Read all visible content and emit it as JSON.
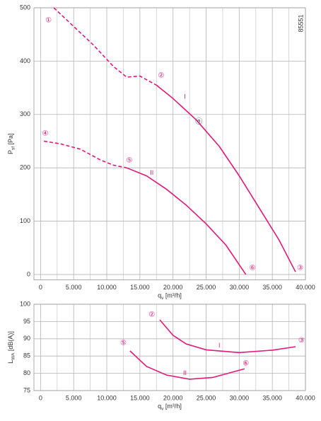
{
  "chart_data": [
    {
      "type": "line",
      "ylabel": {
        "main": "P",
        "sub": "sf",
        "unit": "[Pa]"
      },
      "xlabel": {
        "main": "q",
        "sub": "v",
        "unit": "[m³/h]"
      },
      "code": "85551",
      "xlim": [
        -1000,
        40000
      ],
      "xticks": [
        0,
        {
          "value": 5000,
          "label": "5.000"
        },
        {
          "value": 10000,
          "label": "10.000"
        },
        {
          "value": 15000,
          "label": "15.000"
        },
        {
          "value": 20000,
          "label": "20.000"
        },
        {
          "value": 25000,
          "label": "25.000"
        },
        {
          "value": 30000,
          "label": "30.000"
        },
        {
          "value": 35000,
          "label": "35.000"
        },
        {
          "value": 40000,
          "label": "40.000"
        }
      ],
      "xminorticks": [
        2500,
        7500,
        12500,
        17500,
        22500,
        27500,
        32500,
        37500
      ],
      "ylim": [
        -10,
        500
      ],
      "yticks": [
        0,
        100,
        200,
        300,
        400,
        500
      ],
      "grid": true,
      "series": [
        {
          "color": "#e0197a",
          "style": "dashed",
          "x": [
            2000,
            5000,
            8000,
            11000,
            13000,
            15000,
            17500
          ],
          "values": [
            500,
            465,
            430,
            390,
            370,
            372,
            355
          ]
        },
        {
          "color": "#e0197a",
          "style": "solid",
          "x": [
            17500,
            20000,
            23500,
            27000,
            30000,
            33000,
            36000,
            38500
          ],
          "values": [
            355,
            330,
            290,
            240,
            185,
            125,
            65,
            5
          ]
        },
        {
          "color": "#e0197a",
          "style": "dashed",
          "x": [
            500,
            3000,
            6000,
            9000,
            11000,
            13000
          ],
          "values": [
            250,
            245,
            235,
            215,
            205,
            200
          ]
        },
        {
          "color": "#e0197a",
          "style": "solid",
          "x": [
            13000,
            16000,
            19000,
            22000,
            25000,
            28000,
            31000
          ],
          "values": [
            200,
            185,
            160,
            130,
            95,
            55,
            0
          ]
        }
      ],
      "annotations": [
        {
          "text": "①",
          "x": 1200,
          "y": 476,
          "color": "#e0197a"
        },
        {
          "text": "②",
          "x": 18200,
          "y": 373,
          "color": "#e0197a"
        },
        {
          "text": "③",
          "x": 39200,
          "y": 12,
          "color": "#e0197a"
        },
        {
          "text": "④",
          "x": 700,
          "y": 264,
          "color": "#e0197a"
        },
        {
          "text": "⑤",
          "x": 13400,
          "y": 214,
          "color": "#e0197a"
        },
        {
          "text": "⑥",
          "x": 32000,
          "y": 12,
          "color": "#e0197a"
        },
        {
          "text": "ⓝ",
          "x": 23900,
          "y": 286,
          "color": "#222222"
        },
        {
          "text": "I",
          "x": 21800,
          "y": 333,
          "color": "#e0197a"
        },
        {
          "text": "II",
          "x": 16800,
          "y": 190,
          "color": "#e0197a"
        }
      ]
    },
    {
      "type": "line",
      "ylabel": {
        "main": "L",
        "sub": "WA",
        "unit": "[dB(A)]"
      },
      "xlabel": {
        "main": "q",
        "sub": "v",
        "unit": "[m³/h]"
      },
      "xlim": [
        -1000,
        40000
      ],
      "xticks": [
        0,
        {
          "value": 5000,
          "label": "5.000"
        },
        {
          "value": 10000,
          "label": "10.000"
        },
        {
          "value": 15000,
          "label": "15.000"
        },
        {
          "value": 20000,
          "label": "20.000"
        },
        {
          "value": 25000,
          "label": "25.000"
        },
        {
          "value": 30000,
          "label": "30.000"
        },
        {
          "value": 35000,
          "label": "35.000"
        },
        {
          "value": 40000,
          "label": "40.000"
        }
      ],
      "xminorticks": [
        2500,
        7500,
        12500,
        17500,
        22500,
        27500,
        32500,
        37500
      ],
      "ylim": [
        75,
        100
      ],
      "yticks": [
        75,
        80,
        85,
        90,
        95,
        100
      ],
      "grid": true,
      "series": [
        {
          "color": "#e0197a",
          "style": "solid",
          "x": [
            18000,
            20000,
            22000,
            25000,
            30000,
            35000,
            38500
          ],
          "values": [
            95.5,
            91,
            88.5,
            86.8,
            86,
            86.7,
            87.7
          ]
        },
        {
          "color": "#e0197a",
          "style": "solid",
          "x": [
            13500,
            16000,
            19000,
            22500,
            26000,
            30800
          ],
          "values": [
            86.5,
            82,
            79.5,
            78.3,
            78.8,
            81.3
          ]
        }
      ],
      "annotations": [
        {
          "text": "②",
          "x": 16800,
          "y": 97,
          "color": "#e0197a"
        },
        {
          "text": "③",
          "x": 39400,
          "y": 89.5,
          "color": "#e0197a"
        },
        {
          "text": "⑤",
          "x": 12500,
          "y": 88.8,
          "color": "#e0197a"
        },
        {
          "text": "⑥",
          "x": 31000,
          "y": 82.8,
          "color": "#e0197a"
        },
        {
          "text": "I",
          "x": 27000,
          "y": 88,
          "color": "#e0197a"
        },
        {
          "text": "II",
          "x": 21800,
          "y": 80,
          "color": "#e0197a"
        }
      ]
    }
  ]
}
